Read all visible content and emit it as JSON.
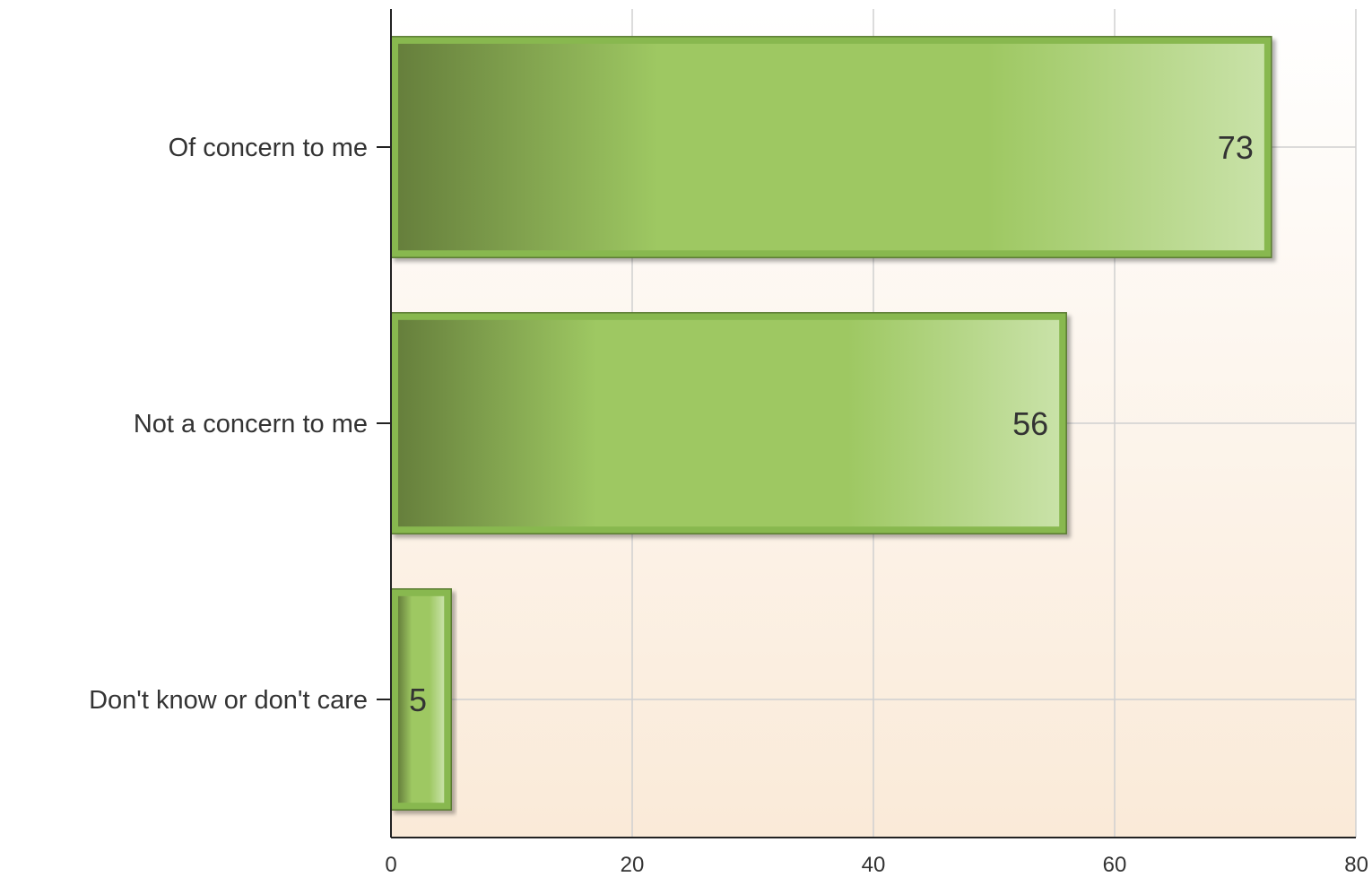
{
  "chart_data": {
    "type": "bar",
    "orientation": "horizontal",
    "categories": [
      "Of concern to me",
      "Not a concern to me",
      "Don't know or don't care"
    ],
    "values": [
      73,
      56,
      5
    ],
    "value_labels": [
      "73",
      "56",
      "5"
    ],
    "title": "",
    "xlabel": "",
    "ylabel": "",
    "xlim": [
      0,
      80
    ],
    "x_ticks": [
      0,
      20,
      40,
      60,
      80
    ],
    "x_tick_labels": [
      "0",
      "20",
      "40",
      "60",
      "80"
    ],
    "grid": true,
    "legend": "none",
    "colors": {
      "bar_dark": "#667f3c",
      "bar_mid": "#9ec862",
      "bar_light": "#c9e2a8",
      "bar_border": "#88b850",
      "background_top": "#ffffff",
      "background_bottom": "#faead8",
      "grid": "#d0d0d0",
      "axis": "#222222",
      "text": "#333333"
    }
  }
}
